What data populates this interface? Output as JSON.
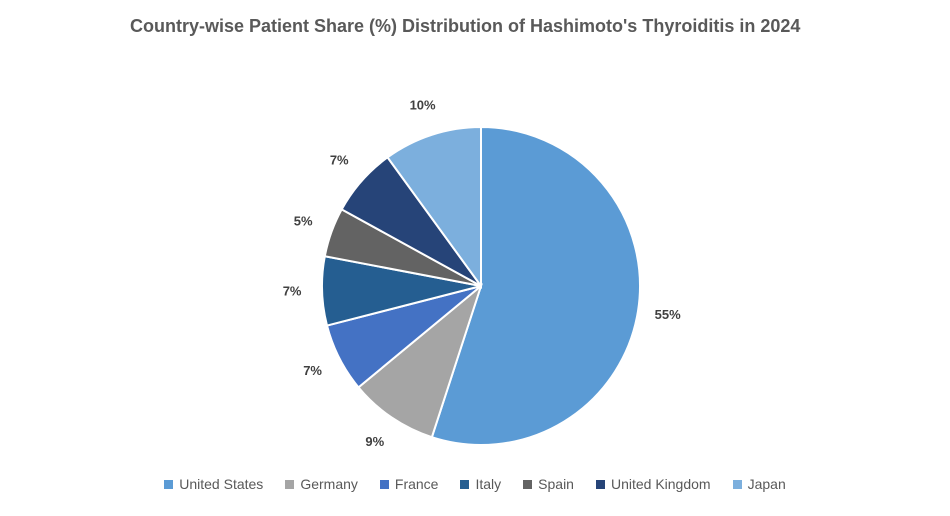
{
  "chart_data": {
    "type": "pie",
    "title": "Country-wise Patient Share (%) Distribution of Hashimoto's Thyroiditis in 2024",
    "categories": [
      "United States",
      "Germany",
      "France",
      "Italy",
      "Spain",
      "United Kingdom",
      "Japan"
    ],
    "values": [
      55,
      9,
      7,
      7,
      5,
      7,
      10
    ],
    "value_labels": [
      "55%",
      "9%",
      "7%",
      "7%",
      "5%",
      "7%",
      "10%"
    ],
    "colors": [
      "#5b9bd5",
      "#a5a5a5",
      "#4472c4",
      "#255e91",
      "#636363",
      "#264478",
      "#7cafdd"
    ],
    "legend": "bottom"
  }
}
